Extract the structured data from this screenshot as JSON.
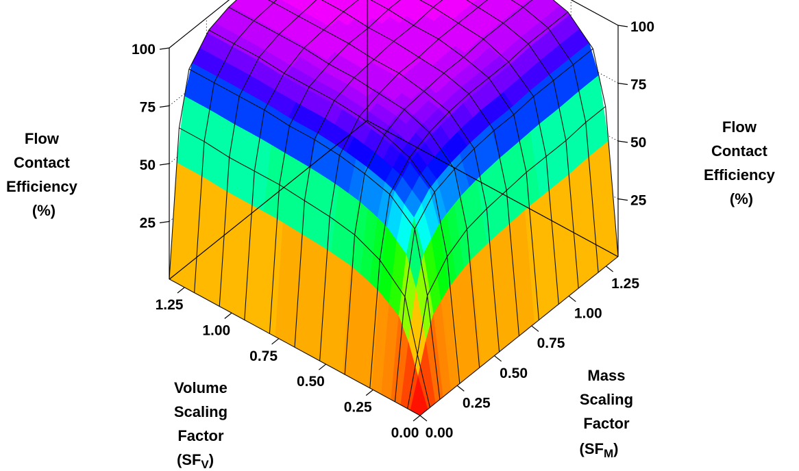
{
  "chart_data": {
    "type": "surface",
    "x_axis": {
      "label_lines": [
        "Volume",
        "Scaling",
        "Factor",
        "(SF",
        "V",
        ")"
      ],
      "ticks": [
        0.0,
        0.25,
        0.5,
        0.75,
        1.0,
        1.25
      ],
      "tick_labels": [
        "0.00",
        "0.25",
        "0.50",
        "0.75",
        "1.00",
        "1.25"
      ],
      "range": [
        0,
        1.33
      ]
    },
    "y_axis": {
      "label_lines": [
        "Mass",
        "Scaling",
        "Factor",
        "(SF",
        "M",
        ")"
      ],
      "ticks": [
        0.0,
        0.25,
        0.5,
        0.75,
        1.0,
        1.25
      ],
      "tick_labels": [
        "0.00",
        "0.25",
        "0.50",
        "0.75",
        "1.00",
        "1.25"
      ],
      "range": [
        0,
        1.33
      ]
    },
    "z_axis": {
      "label_lines": [
        "Flow",
        "Contact",
        "Efficiency",
        "(%)"
      ],
      "ticks": [
        25,
        50,
        75,
        100
      ],
      "tick_labels": [
        "25",
        "50",
        "75",
        "100"
      ],
      "range": [
        0,
        100
      ]
    },
    "grid_values": [
      0.0,
      0.0665,
      0.133,
      0.266,
      0.399,
      0.532,
      0.665,
      0.798,
      0.931,
      1.064,
      1.197,
      1.33
    ],
    "z_values": [
      [
        0,
        0,
        0,
        0,
        0,
        0,
        0,
        0,
        0,
        0,
        0,
        0
      ],
      [
        0,
        20,
        42,
        52,
        57,
        59,
        60,
        61,
        61,
        61,
        62,
        62
      ],
      [
        0,
        42,
        68,
        77,
        80,
        82,
        83,
        83,
        84,
        84,
        84,
        84
      ],
      [
        0,
        52,
        77,
        86,
        90,
        92,
        93,
        93,
        93,
        94,
        94,
        94
      ],
      [
        0,
        57,
        80,
        90,
        94,
        95,
        96,
        96,
        97,
        97,
        97,
        97
      ],
      [
        0,
        59,
        82,
        92,
        95,
        97,
        97,
        98,
        98,
        98,
        98,
        98
      ],
      [
        0,
        60,
        83,
        93,
        96,
        97,
        98,
        98,
        99,
        99,
        99,
        99
      ],
      [
        0,
        61,
        83,
        93,
        96,
        98,
        98,
        99,
        99,
        99,
        99,
        99
      ],
      [
        0,
        61,
        84,
        93,
        97,
        98,
        99,
        99,
        99,
        99,
        99,
        99
      ],
      [
        0,
        61,
        84,
        94,
        97,
        98,
        99,
        99,
        99,
        99,
        100,
        100
      ],
      [
        0,
        62,
        84,
        94,
        97,
        98,
        99,
        99,
        99,
        100,
        100,
        100
      ],
      [
        0,
        62,
        84,
        94,
        97,
        98,
        99,
        99,
        99,
        100,
        100,
        100
      ]
    ],
    "colormap": [
      "#ff0000",
      "#ff8000",
      "#ffff00",
      "#00ff00",
      "#00ffff",
      "#0000ff",
      "#ff00ff"
    ],
    "contour_bands": 60,
    "box_grid": true
  }
}
